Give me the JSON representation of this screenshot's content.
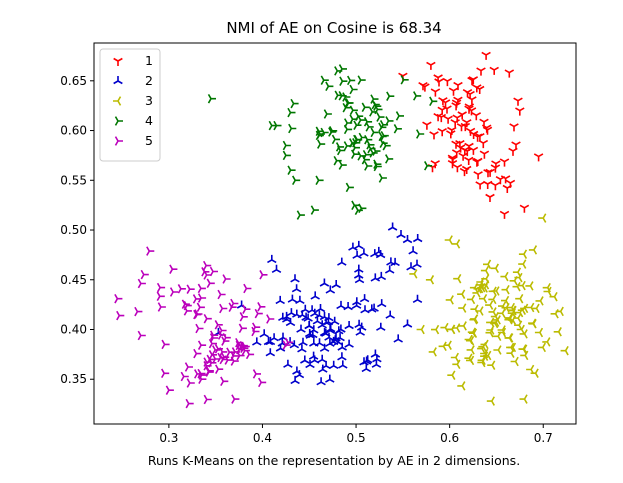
{
  "chart_data": {
    "type": "scatter",
    "title": "NMI of AE on Cosine is 68.34",
    "xlabel": "Runs K-Means on the representation by AE in 2 dimensions.",
    "ylabel": "",
    "xlim": [
      0.22,
      0.735
    ],
    "ylim": [
      0.305,
      0.688
    ],
    "xticks": [
      0.3,
      0.4,
      0.5,
      0.6,
      0.7
    ],
    "xtick_labels": [
      "0.3",
      "0.4",
      "0.5",
      "0.6",
      "0.7"
    ],
    "yticks": [
      0.35,
      0.4,
      0.45,
      0.5,
      0.55,
      0.6,
      0.65
    ],
    "ytick_labels": [
      "0.35",
      "0.40",
      "0.45",
      "0.50",
      "0.55",
      "0.60",
      "0.65"
    ],
    "grid": false,
    "legend_position": "top-left",
    "series": [
      {
        "name": "1",
        "color": "#ff0000",
        "marker": "tri_down",
        "clusters": [
          {
            "cx": 0.615,
            "cy": 0.607,
            "sx": 0.03,
            "sy": 0.033,
            "n": 72
          },
          {
            "cx": 0.64,
            "cy": 0.55,
            "sx": 0.025,
            "sy": 0.022,
            "n": 20
          }
        ],
        "extra": [
          [
            0.695,
            0.574
          ],
          [
            0.675,
            0.62
          ],
          [
            0.673,
            0.63
          ],
          [
            0.58,
            0.666
          ],
          [
            0.55,
            0.655
          ]
        ]
      },
      {
        "name": "2",
        "color": "#0000cc",
        "marker": "tri_up",
        "clusters": [
          {
            "cx": 0.47,
            "cy": 0.4,
            "sx": 0.045,
            "sy": 0.032,
            "n": 110
          },
          {
            "cx": 0.525,
            "cy": 0.47,
            "sx": 0.025,
            "sy": 0.022,
            "n": 20
          }
        ],
        "extra": [
          [
            0.41,
            0.47
          ],
          [
            0.415,
            0.46
          ],
          [
            0.548,
            0.495
          ],
          [
            0.555,
            0.49
          ],
          [
            0.545,
            0.39
          ],
          [
            0.555,
            0.405
          ]
        ]
      },
      {
        "name": "3",
        "color": "#bbbb00",
        "marker": "tri_left",
        "clusters": [
          {
            "cx": 0.645,
            "cy": 0.41,
            "sx": 0.038,
            "sy": 0.035,
            "n": 125
          }
        ],
        "extra": [
          [
            0.7,
            0.512
          ],
          [
            0.712,
            0.433
          ],
          [
            0.69,
            0.48
          ],
          [
            0.6,
            0.49
          ],
          [
            0.645,
            0.328
          ],
          [
            0.68,
            0.33
          ],
          [
            0.57,
            0.4
          ],
          [
            0.58,
            0.45
          ]
        ]
      },
      {
        "name": "4",
        "color": "#007700",
        "marker": "tri_right",
        "clusters": [
          {
            "cx": 0.5,
            "cy": 0.6,
            "sx": 0.035,
            "sy": 0.038,
            "n": 85
          }
        ],
        "extra": [
          [
            0.345,
            0.632
          ],
          [
            0.41,
            0.605
          ],
          [
            0.415,
            0.605
          ],
          [
            0.43,
            0.618
          ],
          [
            0.425,
            0.585
          ],
          [
            0.425,
            0.575
          ],
          [
            0.435,
            0.55
          ],
          [
            0.44,
            0.515
          ],
          [
            0.455,
            0.52
          ],
          [
            0.46,
            0.55
          ],
          [
            0.48,
            0.66
          ],
          [
            0.485,
            0.662
          ]
        ]
      },
      {
        "name": "5",
        "color": "#bb00bb",
        "marker": "tri_right",
        "clusters": [
          {
            "cx": 0.355,
            "cy": 0.38,
            "sx": 0.035,
            "sy": 0.028,
            "n": 70
          },
          {
            "cx": 0.32,
            "cy": 0.44,
            "sx": 0.03,
            "sy": 0.022,
            "n": 25
          }
        ],
        "extra": [
          [
            0.245,
            0.431
          ],
          [
            0.247,
            0.414
          ],
          [
            0.295,
            0.356
          ],
          [
            0.3,
            0.339
          ],
          [
            0.27,
            0.394
          ],
          [
            0.4,
            0.455
          ],
          [
            0.395,
            0.416
          ],
          [
            0.37,
            0.33
          ]
        ]
      }
    ]
  }
}
